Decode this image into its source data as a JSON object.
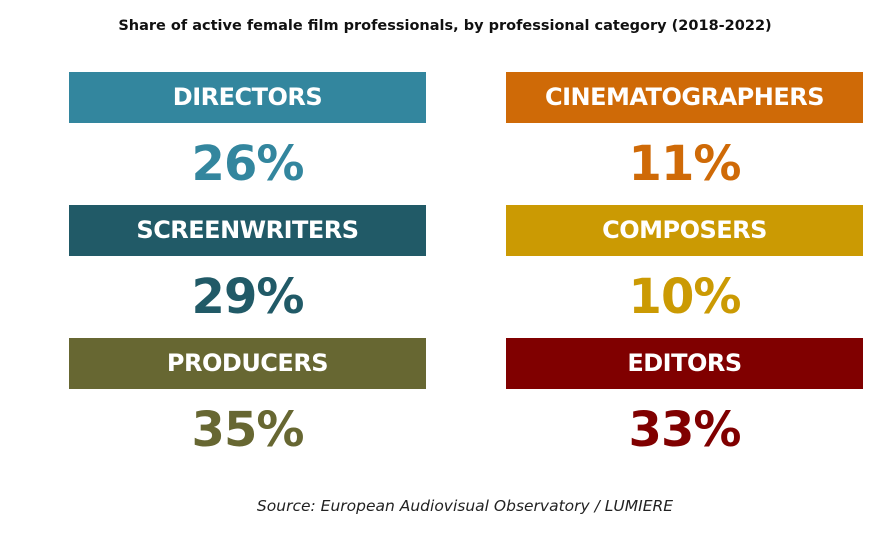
{
  "chart_data": {
    "type": "table",
    "title": "Share of active female film professionals, by professional category (2018-2022)",
    "unit": "%",
    "categories": [
      {
        "label": "DIRECTORS",
        "value": 26,
        "display": "26%",
        "color": "#33869e"
      },
      {
        "label": "CINEMATOGRAPHERS",
        "value": 11,
        "display": "11%",
        "color": "#cf6a07"
      },
      {
        "label": "SCREENWRITERS",
        "value": 29,
        "display": "29%",
        "color": "#215a67"
      },
      {
        "label": "COMPOSERS",
        "value": 10,
        "display": "10%",
        "color": "#cb9a03"
      },
      {
        "label": "PRODUCERS",
        "value": 35,
        "display": "35%",
        "color": "#676732"
      },
      {
        "label": "EDITORS",
        "value": 33,
        "display": "33%",
        "color": "#800000"
      }
    ],
    "source": "Source: European Audiovisual Observatory / LUMIERE"
  }
}
